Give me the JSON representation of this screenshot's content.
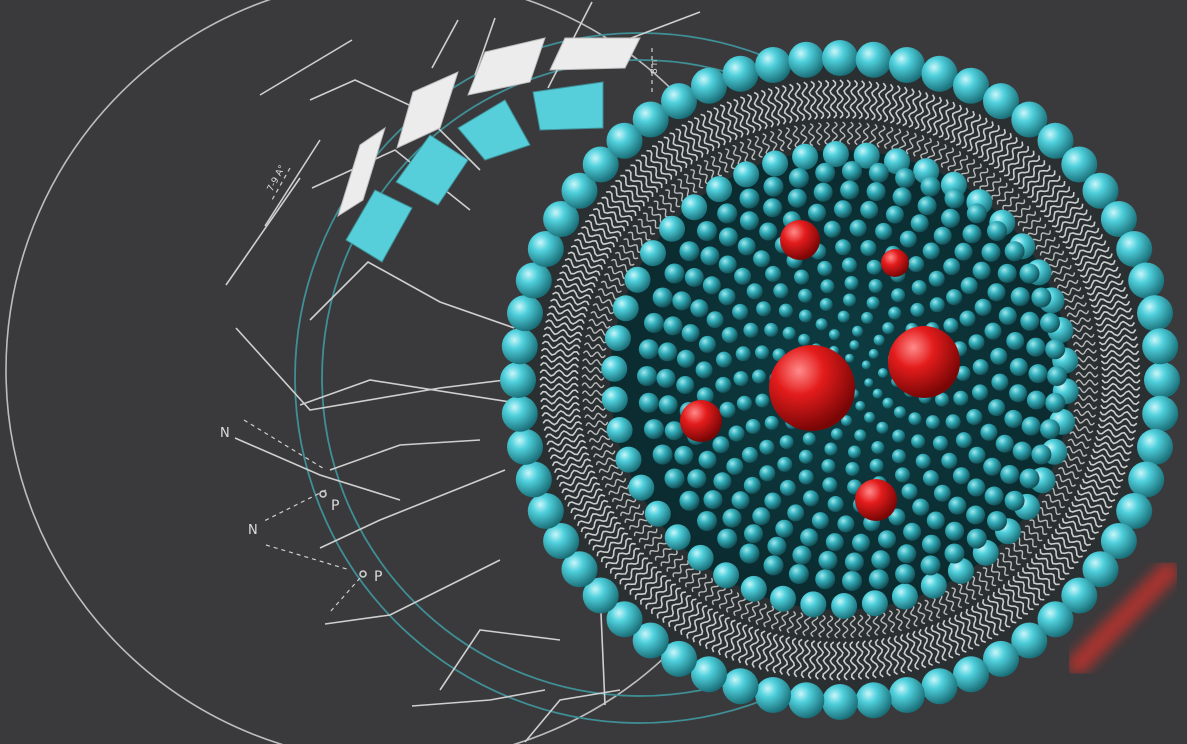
{
  "scene": {
    "background": "#3a3a3c",
    "diagram_labels": {
      "n1": "N",
      "p1": "P",
      "n2": "N",
      "p2": "P",
      "dim_a": "7-9 A°",
      "dim_b": "8 n"
    },
    "colors": {
      "line": "#cfcfcf",
      "teal_line": "#3f8f96",
      "head": "#4ccbd6",
      "tail": "#ececec",
      "cargo": "#e01e1e"
    }
  }
}
